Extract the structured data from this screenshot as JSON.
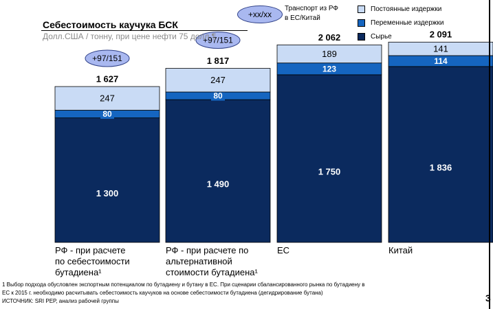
{
  "header": {
    "title": "Себестоимость каучука БСК",
    "subtitle": "Долл.США / тонну, при цене нефти 75 долл.¶"
  },
  "transport": {
    "badge_label": "+xx/xx",
    "note_line1": "Транспорт из РФ",
    "note_line2": "в ЕС/Китай"
  },
  "legend": {
    "items": [
      {
        "label": "Постоянные издержки",
        "color": "#c9dbf5"
      },
      {
        "label": "Переменные издержки",
        "color": "#1565c0"
      },
      {
        "label": "Сырье",
        "color": "#0b2a5e"
      }
    ]
  },
  "categories": [
    {
      "line1": "РФ - при расчете",
      "line2": "по себестоимости",
      "line3": "бутадиена¹"
    },
    {
      "line1": "РФ - при расчете по",
      "line2": "альтернативной",
      "line3": "стоимости бутадиена¹"
    },
    {
      "line1": "ЕС",
      "line2": "",
      "line3": ""
    },
    {
      "line1": "Китай",
      "line2": "",
      "line3": ""
    }
  ],
  "footnote": {
    "line1": "1 Выбор подхода обусловлен экспортным потенциалом по бутадиену и бутану в ЕС. При сценарии сбалансированного рынка по бутадиену в",
    "line2": "  ЕС к 2015 г. необходимо расчитывать себестоимость каучуков на основе себестоимости бутадиена (дегидрирование бутана)",
    "line3": "ИСТОЧНИК: SRI PEP, анализ рабочей группы"
  },
  "corner_mark": "3",
  "chart_data": {
    "type": "bar",
    "stacked": true,
    "categories": [
      "РФ - при расчете по себестоимости бутадиена¹",
      "РФ - при расчете по альтернативной стоимости бутадиена¹",
      "ЕС",
      "Китай"
    ],
    "series": [
      {
        "name": "Сырье",
        "values": [
          1300,
          1490,
          1750,
          1836
        ],
        "labels": [
          "1 300",
          "1 490",
          "1 750",
          "1 836"
        ],
        "color": "#0b2a5e"
      },
      {
        "name": "Переменные издержки",
        "values": [
          80,
          80,
          123,
          114
        ],
        "labels": [
          "80",
          "80",
          "123",
          "114"
        ],
        "color": "#1565c0"
      },
      {
        "name": "Постоянные издержки",
        "values": [
          247,
          247,
          189,
          141
        ],
        "labels": [
          "247",
          "247",
          "189",
          "141"
        ],
        "color": "#c9dbf5"
      }
    ],
    "totals": [
      1627,
      1817,
      2062,
      2091
    ],
    "total_labels": [
      "1 627",
      "1 817",
      "2 062",
      "2 091"
    ],
    "transport_badges": [
      "+97/151",
      "+97/151",
      "",
      ""
    ],
    "ylim": [
      0,
      2200
    ]
  }
}
